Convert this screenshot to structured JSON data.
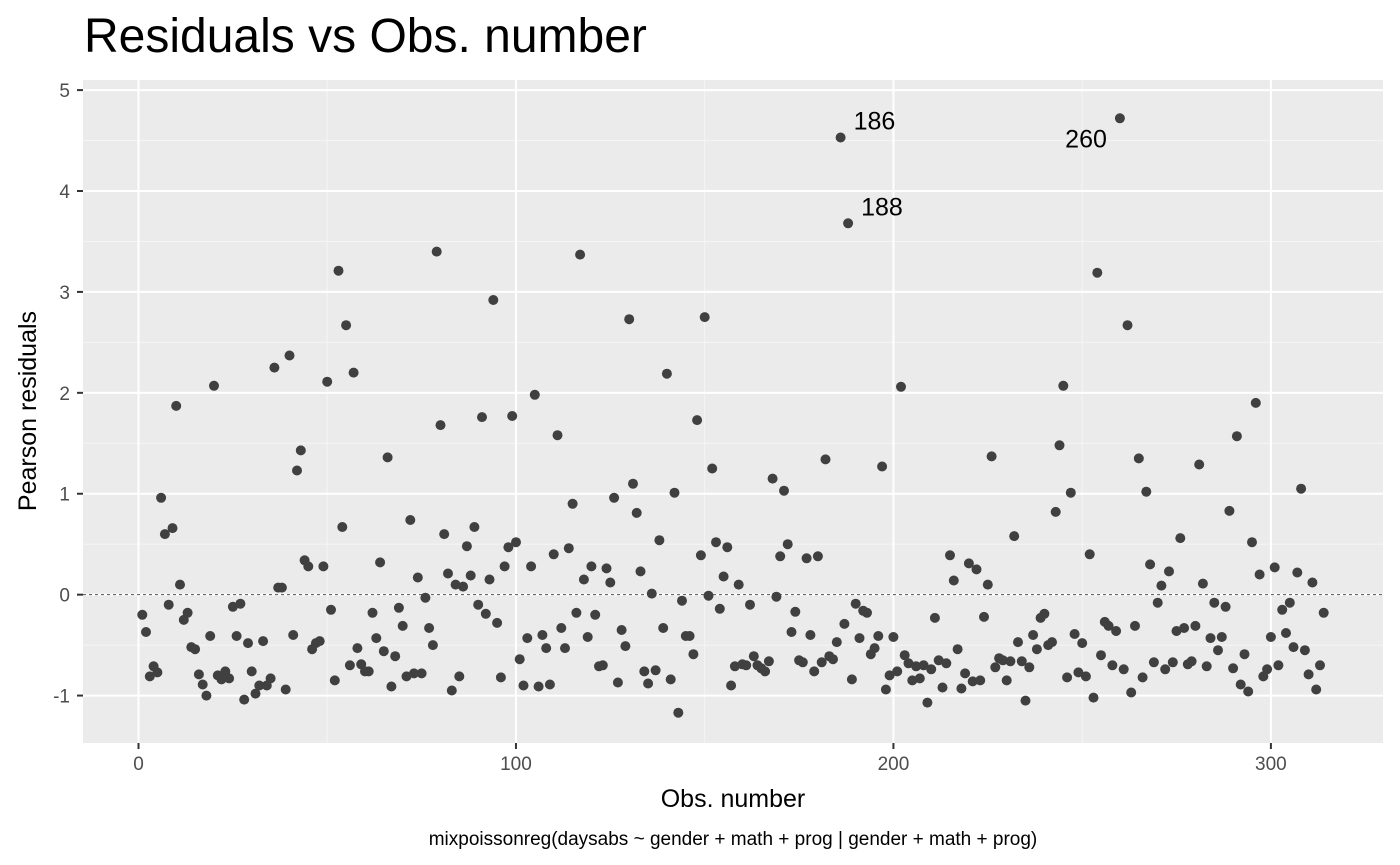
{
  "chart_data": {
    "type": "scatter",
    "title": "Residuals vs Obs. number",
    "xlabel": "Obs. number",
    "ylabel": "Pearson residuals",
    "caption": "mixpoissonreg(daysabs ~ gender + math + prog | gender + math + prog)",
    "xlim": [
      -14.7,
      329.7
    ],
    "ylim": [
      -1.47,
      5.1
    ],
    "x_ticks": [
      0,
      100,
      200,
      300
    ],
    "x_tick_labels": [
      "0",
      "100",
      "200",
      "300"
    ],
    "y_ticks": [
      -1,
      0,
      1,
      2,
      3,
      4,
      5
    ],
    "y_tick_labels": [
      "-1",
      "0",
      "1",
      "2",
      "3",
      "4",
      "5"
    ],
    "reference_line": 0,
    "grid": true,
    "point_color": "#404040",
    "annotations": [
      {
        "label": "186",
        "x": 186,
        "y": 4.53
      },
      {
        "label": "188",
        "x": 188,
        "y": 3.68
      },
      {
        "label": "260",
        "x": 260,
        "y": 4.72
      }
    ],
    "points": [
      [
        1,
        -0.2
      ],
      [
        2,
        -0.37
      ],
      [
        3,
        -0.81
      ],
      [
        4,
        -0.71
      ],
      [
        5,
        -0.77
      ],
      [
        6,
        0.96
      ],
      [
        7,
        0.6
      ],
      [
        8,
        -0.1
      ],
      [
        9,
        0.66
      ],
      [
        10,
        1.87
      ],
      [
        11,
        0.1
      ],
      [
        12,
        -0.25
      ],
      [
        13,
        -0.18
      ],
      [
        14,
        -0.52
      ],
      [
        15,
        -0.54
      ],
      [
        16,
        -0.79
      ],
      [
        17,
        -0.89
      ],
      [
        18,
        -1.0
      ],
      [
        19,
        -0.41
      ],
      [
        20,
        2.07
      ],
      [
        21,
        -0.8
      ],
      [
        22,
        -0.84
      ],
      [
        23,
        -0.76
      ],
      [
        24,
        -0.83
      ],
      [
        25,
        -0.12
      ],
      [
        26,
        -0.41
      ],
      [
        27,
        -0.09
      ],
      [
        28,
        -1.04
      ],
      [
        29,
        -0.48
      ],
      [
        30,
        -0.76
      ],
      [
        31,
        -0.98
      ],
      [
        32,
        -0.9
      ],
      [
        33,
        -0.46
      ],
      [
        34,
        -0.9
      ],
      [
        35,
        -0.83
      ],
      [
        36,
        2.25
      ],
      [
        37,
        0.07
      ],
      [
        38,
        0.07
      ],
      [
        39,
        -0.94
      ],
      [
        40,
        2.37
      ],
      [
        41,
        -0.4
      ],
      [
        42,
        1.23
      ],
      [
        43,
        1.43
      ],
      [
        44,
        0.34
      ],
      [
        45,
        0.28
      ],
      [
        46,
        -0.54
      ],
      [
        47,
        -0.48
      ],
      [
        48,
        -0.46
      ],
      [
        49,
        0.28
      ],
      [
        50,
        2.11
      ],
      [
        51,
        -0.15
      ],
      [
        52,
        -0.85
      ],
      [
        53,
        3.21
      ],
      [
        54,
        0.67
      ],
      [
        55,
        2.67
      ],
      [
        56,
        -0.7
      ],
      [
        57,
        2.2
      ],
      [
        58,
        -0.53
      ],
      [
        59,
        -0.69
      ],
      [
        60,
        -0.76
      ],
      [
        61,
        -0.76
      ],
      [
        62,
        -0.18
      ],
      [
        63,
        -0.43
      ],
      [
        64,
        0.32
      ],
      [
        65,
        -0.56
      ],
      [
        66,
        1.36
      ],
      [
        67,
        -0.91
      ],
      [
        68,
        -0.61
      ],
      [
        69,
        -0.13
      ],
      [
        70,
        -0.31
      ],
      [
        71,
        -0.81
      ],
      [
        72,
        0.74
      ],
      [
        73,
        -0.78
      ],
      [
        74,
        0.17
      ],
      [
        75,
        -0.78
      ],
      [
        76,
        -0.03
      ],
      [
        77,
        -0.33
      ],
      [
        78,
        -0.5
      ],
      [
        79,
        3.4
      ],
      [
        80,
        1.68
      ],
      [
        81,
        0.6
      ],
      [
        82,
        0.21
      ],
      [
        83,
        -0.95
      ],
      [
        84,
        0.1
      ],
      [
        85,
        -0.81
      ],
      [
        86,
        0.08
      ],
      [
        87,
        0.48
      ],
      [
        88,
        0.19
      ],
      [
        89,
        0.67
      ],
      [
        90,
        -0.1
      ],
      [
        91,
        1.76
      ],
      [
        92,
        -0.19
      ],
      [
        93,
        0.15
      ],
      [
        94,
        2.92
      ],
      [
        95,
        -0.28
      ],
      [
        96,
        -0.82
      ],
      [
        97,
        0.28
      ],
      [
        98,
        0.47
      ],
      [
        99,
        1.77
      ],
      [
        100,
        0.52
      ],
      [
        101,
        -0.64
      ],
      [
        102,
        -0.9
      ],
      [
        103,
        -0.43
      ],
      [
        104,
        0.28
      ],
      [
        105,
        1.98
      ],
      [
        106,
        -0.91
      ],
      [
        107,
        -0.4
      ],
      [
        108,
        -0.53
      ],
      [
        109,
        -0.89
      ],
      [
        110,
        0.4
      ],
      [
        111,
        1.58
      ],
      [
        112,
        -0.33
      ],
      [
        113,
        -0.53
      ],
      [
        114,
        0.46
      ],
      [
        115,
        0.9
      ],
      [
        116,
        -0.18
      ],
      [
        117,
        3.37
      ],
      [
        118,
        0.15
      ],
      [
        119,
        -0.42
      ],
      [
        120,
        0.28
      ],
      [
        121,
        -0.2
      ],
      [
        122,
        -0.71
      ],
      [
        123,
        -0.7
      ],
      [
        124,
        0.26
      ],
      [
        125,
        0.12
      ],
      [
        126,
        0.96
      ],
      [
        127,
        -0.87
      ],
      [
        128,
        -0.35
      ],
      [
        129,
        -0.51
      ],
      [
        130,
        2.73
      ],
      [
        131,
        1.1
      ],
      [
        132,
        0.81
      ],
      [
        133,
        0.23
      ],
      [
        134,
        -0.76
      ],
      [
        135,
        -0.88
      ],
      [
        136,
        0.01
      ],
      [
        137,
        -0.75
      ],
      [
        138,
        0.54
      ],
      [
        139,
        -0.33
      ],
      [
        140,
        2.19
      ],
      [
        141,
        -0.84
      ],
      [
        142,
        1.01
      ],
      [
        143,
        -1.17
      ],
      [
        144,
        -0.06
      ],
      [
        145,
        -0.41
      ],
      [
        146,
        -0.41
      ],
      [
        147,
        -0.59
      ],
      [
        148,
        1.73
      ],
      [
        149,
        0.39
      ],
      [
        150,
        2.75
      ],
      [
        151,
        -0.01
      ],
      [
        152,
        1.25
      ],
      [
        153,
        0.52
      ],
      [
        154,
        -0.14
      ],
      [
        155,
        0.18
      ],
      [
        156,
        0.47
      ],
      [
        157,
        -0.9
      ],
      [
        158,
        -0.71
      ],
      [
        159,
        0.1
      ],
      [
        160,
        -0.69
      ],
      [
        161,
        -0.7
      ],
      [
        162,
        -0.1
      ],
      [
        163,
        -0.61
      ],
      [
        164,
        -0.7
      ],
      [
        165,
        -0.73
      ],
      [
        166,
        -0.76
      ],
      [
        167,
        -0.66
      ],
      [
        168,
        1.15
      ],
      [
        169,
        -0.02
      ],
      [
        170,
        0.38
      ],
      [
        171,
        1.03
      ],
      [
        172,
        0.5
      ],
      [
        173,
        -0.37
      ],
      [
        174,
        -0.17
      ],
      [
        175,
        -0.65
      ],
      [
        176,
        -0.67
      ],
      [
        177,
        0.36
      ],
      [
        178,
        -0.4
      ],
      [
        179,
        -0.76
      ],
      [
        180,
        0.38
      ],
      [
        181,
        -0.67
      ],
      [
        182,
        1.34
      ],
      [
        183,
        -0.61
      ],
      [
        184,
        -0.64
      ],
      [
        185,
        -0.47
      ],
      [
        186,
        4.53
      ],
      [
        187,
        -0.29
      ],
      [
        188,
        3.68
      ],
      [
        189,
        -0.84
      ],
      [
        190,
        -0.09
      ],
      [
        191,
        -0.43
      ],
      [
        192,
        -0.16
      ],
      [
        193,
        -0.18
      ],
      [
        194,
        -0.59
      ],
      [
        195,
        -0.53
      ],
      [
        196,
        -0.41
      ],
      [
        197,
        1.27
      ],
      [
        198,
        -0.94
      ],
      [
        199,
        -0.8
      ],
      [
        200,
        -0.42
      ],
      [
        201,
        -0.76
      ],
      [
        202,
        2.06
      ],
      [
        203,
        -0.6
      ],
      [
        204,
        -0.68
      ],
      [
        205,
        -0.85
      ],
      [
        206,
        -0.71
      ],
      [
        207,
        -0.83
      ],
      [
        208,
        -0.7
      ],
      [
        209,
        -1.07
      ],
      [
        210,
        -0.74
      ],
      [
        211,
        -0.23
      ],
      [
        212,
        -0.65
      ],
      [
        213,
        -0.92
      ],
      [
        214,
        -0.68
      ],
      [
        215,
        0.39
      ],
      [
        216,
        0.14
      ],
      [
        217,
        -0.54
      ],
      [
        218,
        -0.93
      ],
      [
        219,
        -0.78
      ],
      [
        220,
        0.31
      ],
      [
        221,
        -0.86
      ],
      [
        222,
        0.25
      ],
      [
        223,
        -0.85
      ],
      [
        224,
        -0.22
      ],
      [
        225,
        0.1
      ],
      [
        226,
        1.37
      ],
      [
        227,
        -0.72
      ],
      [
        228,
        -0.63
      ],
      [
        229,
        -0.65
      ],
      [
        230,
        -0.85
      ],
      [
        231,
        -0.66
      ],
      [
        232,
        0.58
      ],
      [
        233,
        -0.47
      ],
      [
        234,
        -0.66
      ],
      [
        235,
        -1.05
      ],
      [
        236,
        -0.72
      ],
      [
        237,
        -0.4
      ],
      [
        238,
        -0.54
      ],
      [
        239,
        -0.23
      ],
      [
        240,
        -0.19
      ],
      [
        241,
        -0.5
      ],
      [
        242,
        -0.47
      ],
      [
        243,
        0.82
      ],
      [
        244,
        1.48
      ],
      [
        245,
        2.07
      ],
      [
        246,
        -0.82
      ],
      [
        247,
        1.01
      ],
      [
        248,
        -0.39
      ],
      [
        249,
        -0.77
      ],
      [
        250,
        -0.48
      ],
      [
        251,
        -0.81
      ],
      [
        252,
        0.4
      ],
      [
        253,
        -1.02
      ],
      [
        254,
        3.19
      ],
      [
        255,
        -0.6
      ],
      [
        256,
        -0.27
      ],
      [
        257,
        -0.31
      ],
      [
        258,
        -0.7
      ],
      [
        259,
        -0.36
      ],
      [
        260,
        4.72
      ],
      [
        261,
        -0.74
      ],
      [
        262,
        2.67
      ],
      [
        263,
        -0.97
      ],
      [
        264,
        -0.31
      ],
      [
        265,
        1.35
      ],
      [
        266,
        -0.82
      ],
      [
        267,
        1.02
      ],
      [
        268,
        0.3
      ],
      [
        269,
        -0.67
      ],
      [
        270,
        -0.08
      ],
      [
        271,
        0.09
      ],
      [
        272,
        -0.74
      ],
      [
        273,
        0.23
      ],
      [
        274,
        -0.67
      ],
      [
        275,
        -0.36
      ],
      [
        276,
        0.56
      ],
      [
        277,
        -0.33
      ],
      [
        278,
        -0.69
      ],
      [
        279,
        -0.66
      ],
      [
        280,
        -0.31
      ],
      [
        281,
        1.29
      ],
      [
        282,
        0.11
      ],
      [
        283,
        -0.71
      ],
      [
        284,
        -0.43
      ],
      [
        285,
        -0.08
      ],
      [
        286,
        -0.55
      ],
      [
        287,
        -0.42
      ],
      [
        288,
        -0.12
      ],
      [
        289,
        0.83
      ],
      [
        290,
        -0.73
      ],
      [
        291,
        1.57
      ],
      [
        292,
        -0.89
      ],
      [
        293,
        -0.59
      ],
      [
        294,
        -0.96
      ],
      [
        295,
        0.52
      ],
      [
        296,
        1.9
      ],
      [
        297,
        0.2
      ],
      [
        298,
        -0.81
      ],
      [
        299,
        -0.74
      ],
      [
        300,
        -0.42
      ],
      [
        301,
        0.27
      ],
      [
        302,
        -0.7
      ],
      [
        303,
        -0.15
      ],
      [
        304,
        -0.38
      ],
      [
        305,
        -0.08
      ],
      [
        306,
        -0.52
      ],
      [
        307,
        0.22
      ],
      [
        308,
        1.05
      ],
      [
        309,
        -0.55
      ],
      [
        310,
        -0.79
      ],
      [
        311,
        0.12
      ],
      [
        312,
        -0.94
      ],
      [
        313,
        -0.7
      ],
      [
        314,
        -0.18
      ]
    ]
  }
}
